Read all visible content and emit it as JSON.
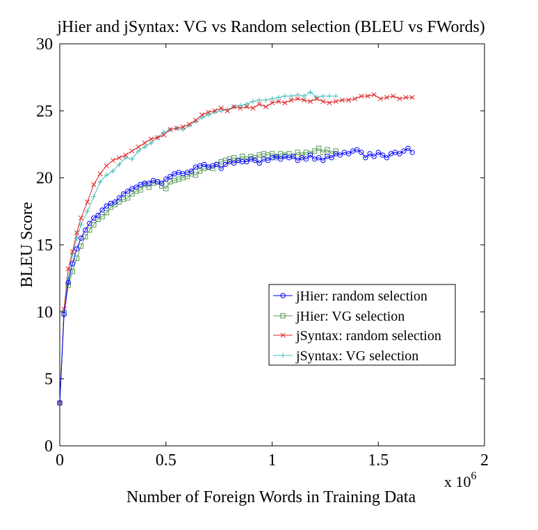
{
  "chart_data": {
    "type": "line",
    "title": "jHier and jSyntax: VG vs Random selection (BLEU vs FWords)",
    "xlabel": "Number of Foreign Words in Training Data",
    "ylabel": "BLEU Score",
    "x_multiplier_label": "x 10",
    "x_multiplier_exponent": "6",
    "xlim": [
      0,
      2
    ],
    "ylim": [
      0,
      30
    ],
    "xticks": [
      0,
      0.5,
      1,
      1.5,
      2
    ],
    "xtick_labels": [
      "0",
      "0.5",
      "1",
      "1.5",
      "2"
    ],
    "yticks": [
      0,
      5,
      10,
      15,
      20,
      25,
      30
    ],
    "ytick_labels": [
      "0",
      "5",
      "10",
      "15",
      "20",
      "25",
      "30"
    ],
    "grid": false,
    "legend_position": "lower-right",
    "series": [
      {
        "name": "jHier: random selection",
        "color": "#0000ff",
        "marker": "circle",
        "points": [
          [
            0,
            3.2
          ],
          [
            0.02,
            9.8
          ],
          [
            0.04,
            12.2
          ],
          [
            0.06,
            13.6
          ],
          [
            0.08,
            14.7
          ],
          [
            0.1,
            15.5
          ],
          [
            0.12,
            16.1
          ],
          [
            0.14,
            16.6
          ],
          [
            0.16,
            17.0
          ],
          [
            0.18,
            17.2
          ],
          [
            0.2,
            17.6
          ],
          [
            0.22,
            17.9
          ],
          [
            0.24,
            18.1
          ],
          [
            0.26,
            18.2
          ],
          [
            0.28,
            18.5
          ],
          [
            0.3,
            18.8
          ],
          [
            0.32,
            19.0
          ],
          [
            0.34,
            19.2
          ],
          [
            0.36,
            19.3
          ],
          [
            0.38,
            19.5
          ],
          [
            0.4,
            19.6
          ],
          [
            0.42,
            19.6
          ],
          [
            0.44,
            19.8
          ],
          [
            0.46,
            19.7
          ],
          [
            0.48,
            19.6
          ],
          [
            0.5,
            19.9
          ],
          [
            0.52,
            20.1
          ],
          [
            0.54,
            20.3
          ],
          [
            0.56,
            20.4
          ],
          [
            0.58,
            20.3
          ],
          [
            0.6,
            20.4
          ],
          [
            0.62,
            20.5
          ],
          [
            0.64,
            20.8
          ],
          [
            0.66,
            20.9
          ],
          [
            0.68,
            21.0
          ],
          [
            0.7,
            20.8
          ],
          [
            0.72,
            20.9
          ],
          [
            0.74,
            21.0
          ],
          [
            0.76,
            20.7
          ],
          [
            0.78,
            21.0
          ],
          [
            0.8,
            21.2
          ],
          [
            0.82,
            21.1
          ],
          [
            0.84,
            21.3
          ],
          [
            0.86,
            21.2
          ],
          [
            0.88,
            21.2
          ],
          [
            0.9,
            21.4
          ],
          [
            0.92,
            21.3
          ],
          [
            0.94,
            21.1
          ],
          [
            0.96,
            21.4
          ],
          [
            0.98,
            21.3
          ],
          [
            1.0,
            21.5
          ],
          [
            1.02,
            21.6
          ],
          [
            1.04,
            21.4
          ],
          [
            1.06,
            21.6
          ],
          [
            1.08,
            21.5
          ],
          [
            1.1,
            21.6
          ],
          [
            1.12,
            21.3
          ],
          [
            1.14,
            21.5
          ],
          [
            1.16,
            21.4
          ],
          [
            1.18,
            21.7
          ],
          [
            1.2,
            21.4
          ],
          [
            1.22,
            21.5
          ],
          [
            1.24,
            21.3
          ],
          [
            1.26,
            21.6
          ],
          [
            1.28,
            21.5
          ],
          [
            1.3,
            21.8
          ],
          [
            1.32,
            21.7
          ],
          [
            1.34,
            21.9
          ],
          [
            1.36,
            21.8
          ],
          [
            1.38,
            22.0
          ],
          [
            1.4,
            22.1
          ],
          [
            1.42,
            21.9
          ],
          [
            1.44,
            21.5
          ],
          [
            1.46,
            21.8
          ],
          [
            1.48,
            21.6
          ],
          [
            1.5,
            21.9
          ],
          [
            1.52,
            21.7
          ],
          [
            1.54,
            21.5
          ],
          [
            1.56,
            21.8
          ],
          [
            1.58,
            21.9
          ],
          [
            1.6,
            21.8
          ],
          [
            1.62,
            22.0
          ],
          [
            1.64,
            22.2
          ],
          [
            1.66,
            21.9
          ]
        ]
      },
      {
        "name": "jHier: VG selection",
        "color": "#559955",
        "marker": "square",
        "points": [
          [
            0,
            3.2
          ],
          [
            0.02,
            9.9
          ],
          [
            0.04,
            12.0
          ],
          [
            0.06,
            13.0
          ],
          [
            0.08,
            14.0
          ],
          [
            0.1,
            14.9
          ],
          [
            0.12,
            15.6
          ],
          [
            0.14,
            16.1
          ],
          [
            0.16,
            16.5
          ],
          [
            0.18,
            16.9
          ],
          [
            0.2,
            17.1
          ],
          [
            0.22,
            17.4
          ],
          [
            0.24,
            17.8
          ],
          [
            0.26,
            18.0
          ],
          [
            0.28,
            18.2
          ],
          [
            0.3,
            18.4
          ],
          [
            0.32,
            18.5
          ],
          [
            0.34,
            18.8
          ],
          [
            0.36,
            19.0
          ],
          [
            0.38,
            19.1
          ],
          [
            0.4,
            19.5
          ],
          [
            0.42,
            19.3
          ],
          [
            0.44,
            19.6
          ],
          [
            0.46,
            19.7
          ],
          [
            0.48,
            19.4
          ],
          [
            0.5,
            19.2
          ],
          [
            0.52,
            19.7
          ],
          [
            0.54,
            19.8
          ],
          [
            0.56,
            19.9
          ],
          [
            0.58,
            20.0
          ],
          [
            0.6,
            20.1
          ],
          [
            0.62,
            20.3
          ],
          [
            0.64,
            20.2
          ],
          [
            0.66,
            20.5
          ],
          [
            0.68,
            20.7
          ],
          [
            0.7,
            20.8
          ],
          [
            0.72,
            20.7
          ],
          [
            0.74,
            21.0
          ],
          [
            0.76,
            21.2
          ],
          [
            0.78,
            21.3
          ],
          [
            0.8,
            21.4
          ],
          [
            0.82,
            21.5
          ],
          [
            0.84,
            21.3
          ],
          [
            0.86,
            21.6
          ],
          [
            0.88,
            21.4
          ],
          [
            0.9,
            21.6
          ],
          [
            0.92,
            21.5
          ],
          [
            0.94,
            21.7
          ],
          [
            0.96,
            21.8
          ],
          [
            0.98,
            21.7
          ],
          [
            1.0,
            21.8
          ],
          [
            1.02,
            21.5
          ],
          [
            1.04,
            21.8
          ],
          [
            1.06,
            21.7
          ],
          [
            1.08,
            21.8
          ],
          [
            1.1,
            21.6
          ],
          [
            1.12,
            21.9
          ],
          [
            1.14,
            21.7
          ],
          [
            1.16,
            21.9
          ],
          [
            1.18,
            21.8
          ],
          [
            1.2,
            22.0
          ],
          [
            1.22,
            22.2
          ],
          [
            1.24,
            21.9
          ],
          [
            1.26,
            22.1
          ],
          [
            1.28,
            21.8
          ],
          [
            1.3,
            22.0
          ]
        ]
      },
      {
        "name": "jSyntax: random selection",
        "color": "#dd2222",
        "marker": "x",
        "points": [
          [
            0,
            3.2
          ],
          [
            0.02,
            10.2
          ],
          [
            0.04,
            13.2
          ],
          [
            0.06,
            14.5
          ],
          [
            0.08,
            15.9
          ],
          [
            0.1,
            17.0
          ],
          [
            0.13,
            18.2
          ],
          [
            0.16,
            19.5
          ],
          [
            0.19,
            20.3
          ],
          [
            0.22,
            20.9
          ],
          [
            0.25,
            21.3
          ],
          [
            0.28,
            21.5
          ],
          [
            0.31,
            21.7
          ],
          [
            0.34,
            22.0
          ],
          [
            0.37,
            22.3
          ],
          [
            0.4,
            22.6
          ],
          [
            0.43,
            22.9
          ],
          [
            0.46,
            23.0
          ],
          [
            0.49,
            23.2
          ],
          [
            0.52,
            23.6
          ],
          [
            0.55,
            23.7
          ],
          [
            0.58,
            23.8
          ],
          [
            0.61,
            24.0
          ],
          [
            0.64,
            24.3
          ],
          [
            0.67,
            24.7
          ],
          [
            0.7,
            24.9
          ],
          [
            0.73,
            25.0
          ],
          [
            0.76,
            25.2
          ],
          [
            0.79,
            25.0
          ],
          [
            0.82,
            25.3
          ],
          [
            0.85,
            25.2
          ],
          [
            0.88,
            25.3
          ],
          [
            0.91,
            25.2
          ],
          [
            0.94,
            25.5
          ],
          [
            0.97,
            25.3
          ],
          [
            1.0,
            25.6
          ],
          [
            1.03,
            25.7
          ],
          [
            1.06,
            25.6
          ],
          [
            1.09,
            25.8
          ],
          [
            1.12,
            25.9
          ],
          [
            1.15,
            25.8
          ],
          [
            1.18,
            25.7
          ],
          [
            1.21,
            25.9
          ],
          [
            1.24,
            25.7
          ],
          [
            1.27,
            25.6
          ],
          [
            1.3,
            25.7
          ],
          [
            1.33,
            25.8
          ],
          [
            1.36,
            25.8
          ],
          [
            1.39,
            25.9
          ],
          [
            1.42,
            26.1
          ],
          [
            1.45,
            26.1
          ],
          [
            1.48,
            26.2
          ],
          [
            1.51,
            25.9
          ],
          [
            1.54,
            26.0
          ],
          [
            1.57,
            26.1
          ],
          [
            1.6,
            25.9
          ],
          [
            1.63,
            26.0
          ],
          [
            1.66,
            26.0
          ]
        ]
      },
      {
        "name": "jSyntax: VG selection",
        "color": "#44bbbb",
        "marker": "plus",
        "points": [
          [
            0,
            3.2
          ],
          [
            0.02,
            10.1
          ],
          [
            0.04,
            12.5
          ],
          [
            0.06,
            14.3
          ],
          [
            0.08,
            15.5
          ],
          [
            0.1,
            16.5
          ],
          [
            0.13,
            17.5
          ],
          [
            0.16,
            18.6
          ],
          [
            0.19,
            19.7
          ],
          [
            0.22,
            20.2
          ],
          [
            0.25,
            20.5
          ],
          [
            0.28,
            21.0
          ],
          [
            0.31,
            21.5
          ],
          [
            0.34,
            21.4
          ],
          [
            0.37,
            22.0
          ],
          [
            0.4,
            22.3
          ],
          [
            0.43,
            22.6
          ],
          [
            0.46,
            23.0
          ],
          [
            0.49,
            23.4
          ],
          [
            0.52,
            23.6
          ],
          [
            0.55,
            23.7
          ],
          [
            0.58,
            23.6
          ],
          [
            0.61,
            23.9
          ],
          [
            0.64,
            24.2
          ],
          [
            0.67,
            24.5
          ],
          [
            0.7,
            24.7
          ],
          [
            0.73,
            24.9
          ],
          [
            0.76,
            25.0
          ],
          [
            0.79,
            25.1
          ],
          [
            0.82,
            25.3
          ],
          [
            0.85,
            25.4
          ],
          [
            0.88,
            25.5
          ],
          [
            0.91,
            25.7
          ],
          [
            0.94,
            25.8
          ],
          [
            0.97,
            25.8
          ],
          [
            1.0,
            25.9
          ],
          [
            1.03,
            26.0
          ],
          [
            1.06,
            26.1
          ],
          [
            1.09,
            26.1
          ],
          [
            1.12,
            26.2
          ],
          [
            1.15,
            26.1
          ],
          [
            1.18,
            26.4
          ],
          [
            1.21,
            26.0
          ],
          [
            1.24,
            26.1
          ],
          [
            1.27,
            26.1
          ],
          [
            1.3,
            26.1
          ]
        ]
      }
    ]
  }
}
